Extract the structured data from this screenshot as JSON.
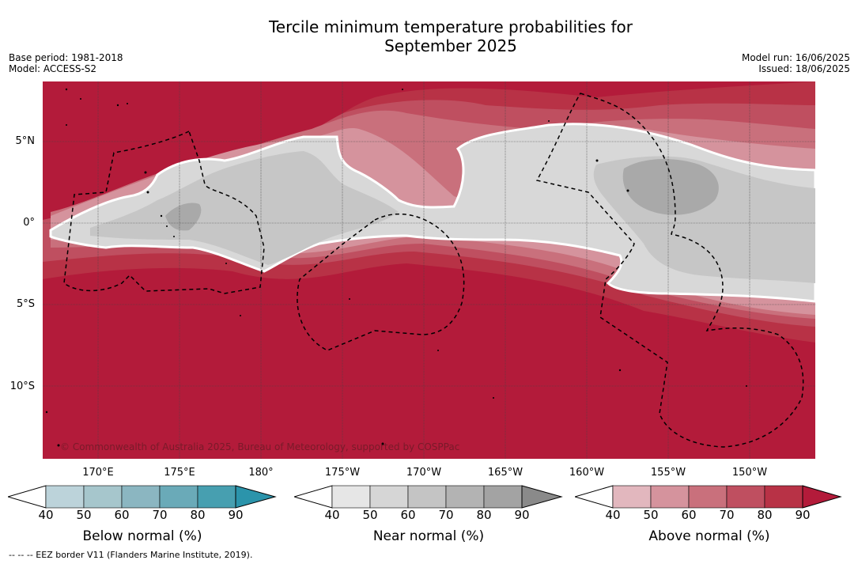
{
  "title_line1": "Tercile minimum temperature probabilities for",
  "title_line2": "September 2025",
  "base_period": "Base period: 1981-2018",
  "model": "Model: ACCESS-S2",
  "model_run": "Model run: 16/06/2025",
  "issued": "Issued: 18/06/2025",
  "lat_labels": [
    "5°N",
    "0°",
    "5°S",
    "10°S"
  ],
  "lon_labels": [
    "170°E",
    "175°E",
    "180°",
    "175°W",
    "170°W",
    "165°W",
    "160°W",
    "155°W",
    "150°W"
  ],
  "copyright": "© Commonwealth of Australia 2025, Bureau of Meteorology, supported by COSPPac",
  "footer": "--  --  -- EEZ border V11 (Flanders Marine Institute, 2019).",
  "colorbars": [
    {
      "label": "Below normal (%)",
      "ticks": [
        "40",
        "50",
        "60",
        "70",
        "80",
        "90"
      ],
      "colors": [
        "#ffffff",
        "#bcd3da",
        "#a6c6cc",
        "#8bb6c1",
        "#6aaab8",
        "#479fb0",
        "#2b94ab"
      ]
    },
    {
      "label": "Near normal (%)",
      "ticks": [
        "40",
        "50",
        "60",
        "70",
        "80",
        "90"
      ],
      "colors": [
        "#ffffff",
        "#e6e6e6",
        "#d6d6d6",
        "#c4c4c4",
        "#b3b3b3",
        "#a3a3a3",
        "#8a8a8a"
      ]
    },
    {
      "label": "Above normal (%)",
      "ticks": [
        "40",
        "50",
        "60",
        "70",
        "80",
        "90"
      ],
      "colors": [
        "#ffffff",
        "#e2b7be",
        "#d5939d",
        "#c9707c",
        "#bf4f60",
        "#b83246",
        "#b31b3a"
      ]
    }
  ],
  "colors": {
    "above_90": "#b31b3a",
    "above_80": "#b83246",
    "above_70": "#bf4f60",
    "above_60": "#c9707c",
    "above_50": "#d5939d",
    "near_50": "#d8d8d8",
    "near_60": "#c6c6c6",
    "near_70": "#a9a9a9"
  }
}
